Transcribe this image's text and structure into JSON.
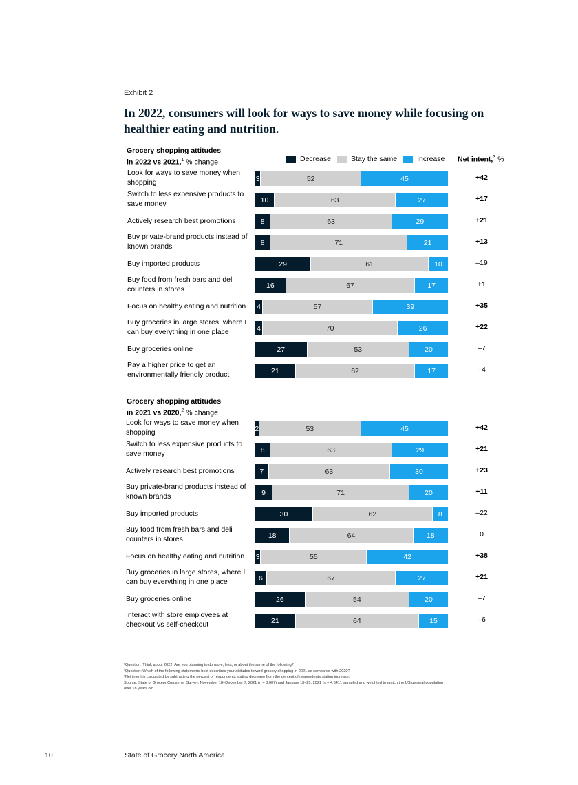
{
  "exhibit_label": "Exhibit 2",
  "headline": "In 2022, consumers will look for ways to save money while focusing on healthier eating and nutrition.",
  "legend": {
    "decrease": "Decrease",
    "same": "Stay the same",
    "increase": "Increase",
    "net_title": "Net intent,",
    "net_sup": "3",
    "net_unit": "%"
  },
  "colors": {
    "decrease": "#051c2c",
    "same": "#d0d0d0",
    "increase": "#1ba3ec"
  },
  "chart_data": [
    {
      "type": "bar",
      "stacked": true,
      "orientation": "horizontal",
      "title_line1": "Grocery shopping attitudes",
      "title_line2": "in 2022 vs 2021,",
      "title_sup": "1",
      "title_unit": "% change",
      "series_names": [
        "Decrease",
        "Stay the same",
        "Increase"
      ],
      "rows": [
        {
          "label": "Look for ways to save money when shopping",
          "decrease": 3,
          "same": 52,
          "increase": 45,
          "net": "+42"
        },
        {
          "label": "Switch to less expensive products to save money",
          "decrease": 10,
          "same": 63,
          "increase": 27,
          "net": "+17"
        },
        {
          "label": "Actively research best promotions",
          "decrease": 8,
          "same": 63,
          "increase": 29,
          "net": "+21"
        },
        {
          "label": "Buy private-brand products instead of known brands",
          "decrease": 8,
          "same": 71,
          "increase": 21,
          "net": "+13"
        },
        {
          "label": "Buy imported products",
          "decrease": 29,
          "same": 61,
          "increase": 10,
          "net": "–19"
        },
        {
          "label": "Buy food from fresh bars and deli counters in stores",
          "decrease": 16,
          "same": 67,
          "increase": 17,
          "net": "+1"
        },
        {
          "label": "Focus on healthy eating and nutrition",
          "decrease": 4,
          "same": 57,
          "increase": 39,
          "net": "+35"
        },
        {
          "label": "Buy groceries in large stores, where I can buy everything in one place",
          "decrease": 4,
          "same": 70,
          "increase": 26,
          "net": "+22"
        },
        {
          "label": "Buy groceries online",
          "decrease": 27,
          "same": 53,
          "increase": 20,
          "net": "–7"
        },
        {
          "label": "Pay a higher price to get an environmentally friendly product",
          "decrease": 21,
          "same": 62,
          "increase": 17,
          "net": "–4"
        }
      ]
    },
    {
      "type": "bar",
      "stacked": true,
      "orientation": "horizontal",
      "title_line1": "Grocery shopping attitudes",
      "title_line2": "in 2021 vs 2020,",
      "title_sup": "2",
      "title_unit": "% change",
      "series_names": [
        "Decrease",
        "Stay the same",
        "Increase"
      ],
      "rows": [
        {
          "label": "Look for ways to save money when shopping",
          "decrease": 2,
          "same": 53,
          "increase": 45,
          "net": "+42"
        },
        {
          "label": "Switch to less expensive products to save money",
          "decrease": 8,
          "same": 63,
          "increase": 29,
          "net": "+21"
        },
        {
          "label": "Actively research best promotions",
          "decrease": 7,
          "same": 63,
          "increase": 30,
          "net": "+23"
        },
        {
          "label": "Buy private-brand products instead of known brands",
          "decrease": 9,
          "same": 71,
          "increase": 20,
          "net": "+11"
        },
        {
          "label": "Buy imported products",
          "decrease": 30,
          "same": 62,
          "increase": 8,
          "net": "–22"
        },
        {
          "label": "Buy food from fresh bars and deli counters in stores",
          "decrease": 18,
          "same": 64,
          "increase": 18,
          "net": "0"
        },
        {
          "label": "Focus on healthy eating and nutrition",
          "decrease": 3,
          "same": 55,
          "increase": 42,
          "net": "+38"
        },
        {
          "label": "Buy groceries in large stores, where I can buy everything in one place",
          "decrease": 6,
          "same": 67,
          "increase": 27,
          "net": "+21"
        },
        {
          "label": "Buy groceries online",
          "decrease": 26,
          "same": 54,
          "increase": 20,
          "net": "–7"
        },
        {
          "label": "Interact with store employees at checkout vs self-checkout",
          "decrease": 21,
          "same": 64,
          "increase": 15,
          "net": "–6"
        }
      ]
    }
  ],
  "footnotes": [
    "¹Question: Think about 2022. Are you planning to do more, less, or about the same of the following?",
    "²Question: Which of the following statements best describes your attitudes toward grocery shopping in 2021 as compared with 2020?",
    "³Net intent is calculated by subtracting the percent of respondents stating decrease from the percent of respondents stating increase.",
    "Source: State of Grocery Consumer Survey, November 18–December 7, 2021 (n = 3,007) and January 13–25, 2021 (n = 4,641); sampled and weighted to match the US general population over 18 years old"
  ],
  "footer": {
    "page_number": "10",
    "report_title": "State of Grocery North America"
  }
}
